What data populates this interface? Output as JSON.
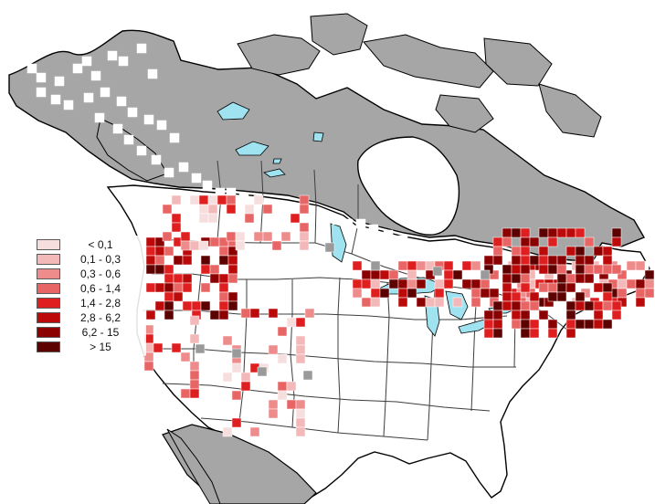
{
  "map": {
    "legend": {
      "items": [
        {
          "label": "< 0,1",
          "color": "#f7dede"
        },
        {
          "label": "0,1 - 0,3",
          "color": "#f3b9b9"
        },
        {
          "label": "0,3 - 0,6",
          "color": "#ee8b8b"
        },
        {
          "label": "0,6 - 1,4",
          "color": "#e86565"
        },
        {
          "label": "1,4 - 2,8",
          "color": "#df1f1f"
        },
        {
          "label": "2,8 - 6,2",
          "color": "#bc0a0a"
        },
        {
          "label": "6,2 - 15",
          "color": "#8b0000"
        },
        {
          "label": "> 15",
          "color": "#5c0000"
        }
      ]
    },
    "colors": {
      "background": "#ffffff",
      "land_absent": "#a6a6a6",
      "land_present": "#ffffff",
      "outline": "#000000",
      "water": "#9fe3f0",
      "state_boundary": "#3d3d3d",
      "no_data_cell": "#9a9a9a"
    }
  }
}
